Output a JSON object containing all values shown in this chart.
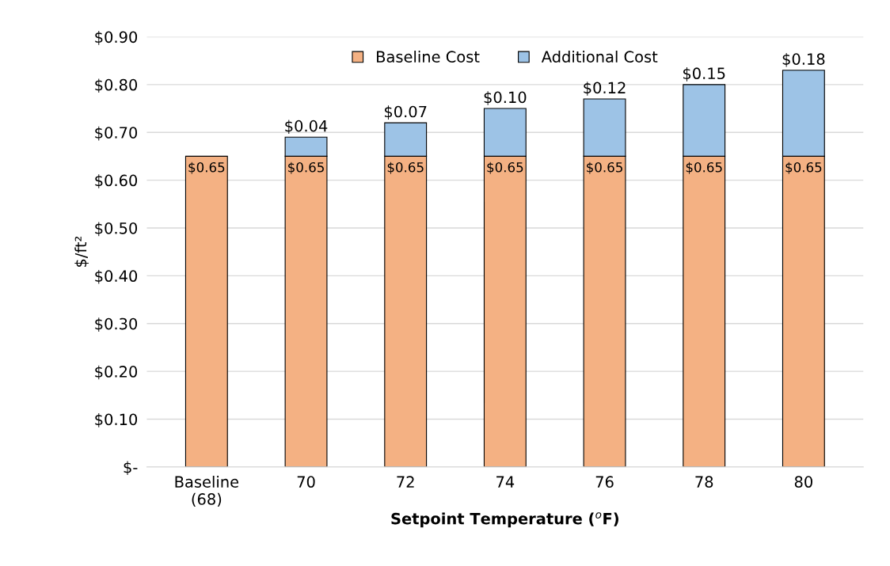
{
  "chart_data": {
    "type": "bar",
    "stacked": true,
    "xlabel": "Setpoint Temperature ($^{o}$F)",
    "ylabel": "$/ft²",
    "categories": [
      "Baseline\n(68)",
      "70",
      "72",
      "74",
      "76",
      "78",
      "80"
    ],
    "series": [
      {
        "name": "Baseline Cost",
        "color": "#f4b183",
        "values": [
          0.65,
          0.65,
          0.65,
          0.65,
          0.65,
          0.65,
          0.65
        ],
        "value_labels": [
          "$0.65",
          "$0.65",
          "$0.65",
          "$0.65",
          "$0.65",
          "$0.65",
          "$0.65"
        ]
      },
      {
        "name": "Additional Cost",
        "color": "#9dc3e6",
        "values": [
          null,
          0.04,
          0.07,
          0.1,
          0.12,
          0.15,
          0.18
        ],
        "value_labels": [
          null,
          "$0.04",
          "$0.07",
          "$0.10",
          "$0.12",
          "$0.15",
          "$0.18"
        ]
      }
    ],
    "ylim": [
      0,
      0.9
    ],
    "yticks": [
      {
        "value": 0,
        "label": "$-"
      },
      {
        "value": 0.1,
        "label": "$0.10"
      },
      {
        "value": 0.2,
        "label": "$0.20"
      },
      {
        "value": 0.3,
        "label": "$0.30"
      },
      {
        "value": 0.4,
        "label": "$0.40"
      },
      {
        "value": 0.5,
        "label": "$0.50"
      },
      {
        "value": 0.6,
        "label": "$0.60"
      },
      {
        "value": 0.7,
        "label": "$0.70"
      },
      {
        "value": 0.8,
        "label": "$0.80"
      },
      {
        "value": 0.9,
        "label": "$0.90"
      }
    ],
    "grid": "y",
    "legend": "top"
  }
}
